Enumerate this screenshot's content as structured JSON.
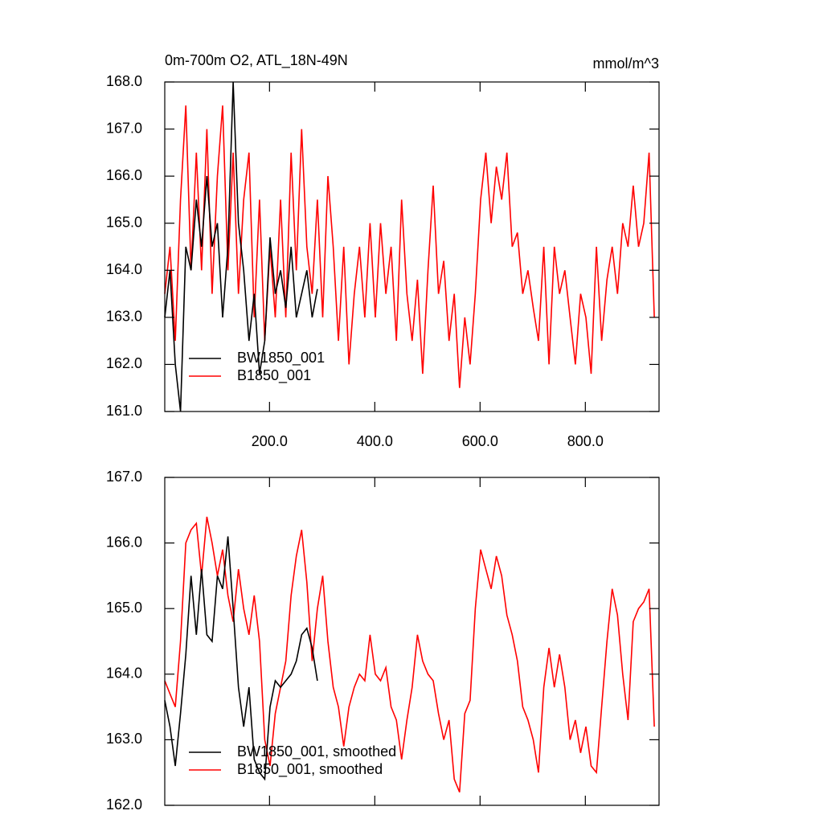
{
  "chart_data": [
    {
      "type": "line",
      "title": "0m-700m O2, ATL_18N-49N",
      "units": "mmol/m^3",
      "xlim": [
        1,
        940
      ],
      "xticks": [
        {
          "value": 200,
          "label": "200.0"
        },
        {
          "value": 400,
          "label": "400.0"
        },
        {
          "value": 600,
          "label": "600.0"
        },
        {
          "value": 800,
          "label": "800.0"
        }
      ],
      "ylim": [
        161,
        168
      ],
      "yticks": [
        {
          "value": 161,
          "label": "161.0"
        },
        {
          "value": 162,
          "label": "162.0"
        },
        {
          "value": 163,
          "label": "163.0"
        },
        {
          "value": 164,
          "label": "164.0"
        },
        {
          "value": 165,
          "label": "165.0"
        },
        {
          "value": 166,
          "label": "166.0"
        },
        {
          "value": 167,
          "label": "167.0"
        },
        {
          "value": 168,
          "label": "168.0"
        }
      ],
      "legend": "lower left",
      "series": [
        {
          "name": "BW1850_001",
          "color": "#000000",
          "x": [
            1,
            11,
            21,
            31,
            41,
            51,
            61,
            71,
            81,
            91,
            101,
            111,
            121,
            131,
            141,
            151,
            161,
            171,
            181,
            191,
            201,
            211,
            221,
            231,
            241,
            251,
            261,
            271,
            281,
            291
          ],
          "values": [
            163,
            164,
            162,
            161,
            164.5,
            164,
            165.5,
            164.5,
            166,
            164.5,
            165,
            163,
            164.5,
            168,
            165,
            164,
            162.5,
            163.5,
            161.8,
            162.5,
            164.7,
            163.5,
            164,
            163.2,
            164.5,
            163,
            163.5,
            164,
            163,
            163.6
          ]
        },
        {
          "name": "B1850_001",
          "color": "#ff0000",
          "x": [
            1,
            11,
            21,
            31,
            41,
            51,
            61,
            71,
            81,
            91,
            101,
            111,
            121,
            131,
            141,
            151,
            161,
            171,
            181,
            191,
            201,
            211,
            221,
            231,
            241,
            251,
            261,
            271,
            281,
            291,
            301,
            311,
            321,
            331,
            341,
            351,
            361,
            371,
            381,
            391,
            401,
            411,
            421,
            431,
            441,
            451,
            461,
            471,
            481,
            491,
            501,
            511,
            521,
            531,
            541,
            551,
            561,
            571,
            581,
            591,
            601,
            611,
            621,
            631,
            641,
            651,
            661,
            671,
            681,
            691,
            701,
            711,
            721,
            731,
            741,
            751,
            761,
            771,
            781,
            791,
            801,
            811,
            821,
            831,
            841,
            851,
            861,
            871,
            881,
            891,
            901,
            911,
            921,
            931
          ],
          "values": [
            163.5,
            164.5,
            162.5,
            165.5,
            167.5,
            164,
            166.5,
            164,
            167,
            163.5,
            166,
            167.5,
            164,
            166.5,
            163.5,
            165.5,
            166.5,
            163,
            165.5,
            162.5,
            164.5,
            163,
            165.5,
            163,
            166.5,
            164,
            167,
            164.5,
            163.5,
            165.5,
            163,
            166,
            164.5,
            162.5,
            164.5,
            162,
            163.5,
            164.5,
            163,
            165,
            163,
            165,
            163.5,
            164.5,
            162.5,
            165.5,
            163.5,
            162.5,
            163.8,
            161.8,
            164,
            165.8,
            163.5,
            164.2,
            162.5,
            163.5,
            161.5,
            163,
            162,
            163.5,
            165.5,
            166.5,
            165,
            166.2,
            165.5,
            166.5,
            164.5,
            164.8,
            163.5,
            164,
            163.2,
            162.5,
            164.5,
            162,
            164.5,
            163.5,
            164,
            163,
            162,
            163.5,
            163,
            161.8,
            164.5,
            162.5,
            163.8,
            164.5,
            163.5,
            165,
            164.5,
            165.8,
            164.5,
            165,
            166.5,
            163
          ]
        }
      ]
    },
    {
      "type": "line",
      "xlim": [
        1,
        940
      ],
      "xticks": [
        200,
        400,
        600,
        800
      ],
      "ylim": [
        162,
        167
      ],
      "yticks": [
        {
          "value": 162,
          "label": "162.0"
        },
        {
          "value": 163,
          "label": "163.0"
        },
        {
          "value": 164,
          "label": "164.0"
        },
        {
          "value": 165,
          "label": "165.0"
        },
        {
          "value": 166,
          "label": "166.0"
        },
        {
          "value": 167,
          "label": "167.0"
        }
      ],
      "legend": "lower left",
      "series": [
        {
          "name": "BW1850_001, smoothed",
          "color": "#000000",
          "x": [
            1,
            11,
            21,
            31,
            41,
            51,
            61,
            71,
            81,
            91,
            101,
            111,
            121,
            131,
            141,
            151,
            161,
            171,
            181,
            191,
            201,
            211,
            221,
            231,
            241,
            251,
            261,
            271,
            281,
            291
          ],
          "values": [
            163.6,
            163.2,
            162.6,
            163.4,
            164.3,
            165.5,
            164.6,
            165.6,
            164.6,
            164.5,
            165.5,
            165.3,
            166.1,
            165,
            163.8,
            163.2,
            163.8,
            162.7,
            162.5,
            162.4,
            163.5,
            163.9,
            163.8,
            163.9,
            164,
            164.2,
            164.6,
            164.7,
            164.4,
            163.9
          ]
        },
        {
          "name": "B1850_001, smoothed",
          "color": "#ff0000",
          "x": [
            1,
            11,
            21,
            31,
            41,
            51,
            61,
            71,
            81,
            91,
            101,
            111,
            121,
            131,
            141,
            151,
            161,
            171,
            181,
            191,
            201,
            211,
            221,
            231,
            241,
            251,
            261,
            271,
            281,
            291,
            301,
            311,
            321,
            331,
            341,
            351,
            361,
            371,
            381,
            391,
            401,
            411,
            421,
            431,
            441,
            451,
            461,
            471,
            481,
            491,
            501,
            511,
            521,
            531,
            541,
            551,
            561,
            571,
            581,
            591,
            601,
            611,
            621,
            631,
            641,
            651,
            661,
            671,
            681,
            691,
            701,
            711,
            721,
            731,
            741,
            751,
            761,
            771,
            781,
            791,
            801,
            811,
            821,
            831,
            841,
            851,
            861,
            871,
            881,
            891,
            901,
            911,
            921,
            931
          ],
          "values": [
            163.9,
            163.7,
            163.5,
            164.5,
            166,
            166.2,
            166.3,
            165.5,
            166.4,
            166,
            165.5,
            165.9,
            165.2,
            164.8,
            165.6,
            165,
            164.6,
            165.2,
            164.5,
            163,
            162.6,
            163.4,
            163.8,
            164.2,
            165.2,
            165.8,
            166.2,
            165.4,
            164.2,
            165,
            165.5,
            164.5,
            163.8,
            163.5,
            162.9,
            163.5,
            163.8,
            164,
            163.9,
            164.6,
            164,
            163.9,
            164.1,
            163.5,
            163.3,
            162.7,
            163.3,
            163.8,
            164.6,
            164.2,
            164,
            163.9,
            163.4,
            163,
            163.3,
            162.4,
            162.2,
            163.4,
            163.6,
            165,
            165.9,
            165.6,
            165.3,
            165.8,
            165.5,
            164.9,
            164.6,
            164.2,
            163.5,
            163.3,
            163,
            162.5,
            163.8,
            164.4,
            163.8,
            164.3,
            163.8,
            163,
            163.3,
            162.8,
            163.2,
            162.6,
            162.5,
            163.5,
            164.5,
            165.3,
            164.9,
            164,
            163.3,
            164.8,
            165,
            165.1,
            165.3,
            163.2
          ]
        }
      ]
    }
  ]
}
